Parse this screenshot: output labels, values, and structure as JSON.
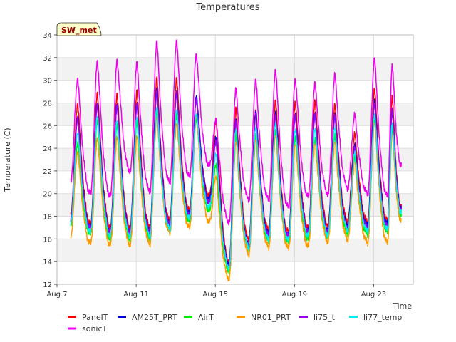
{
  "chart_data": {
    "type": "line",
    "title": "Temperatures",
    "xlabel": "Time",
    "ylabel": "Temperature (C)",
    "badge": "SW_met",
    "ylim": [
      12,
      34
    ],
    "yticks": [
      12,
      14,
      16,
      18,
      20,
      22,
      24,
      26,
      28,
      30,
      32,
      34
    ],
    "xlim": [
      7,
      25
    ],
    "xticks": [
      {
        "value": 7,
        "label": "Aug 7"
      },
      {
        "value": 11,
        "label": "Aug 11"
      },
      {
        "value": 15,
        "label": "Aug 15"
      },
      {
        "value": 19,
        "label": "Aug 19"
      },
      {
        "value": 23,
        "label": "Aug 23"
      }
    ],
    "grid": true,
    "legend_position": "bottom",
    "days": [
      7.7,
      8.7,
      9.7,
      10.7,
      11.7,
      12.7,
      13.7,
      14.7,
      15.7,
      16.7,
      17.7,
      18.7,
      19.7,
      20.7,
      21.7,
      22.7,
      23.7,
      24.4
    ],
    "series": [
      {
        "name": "PanelT",
        "color": "#ff0000",
        "peaks": [
          28.0,
          29.0,
          28.8,
          29.0,
          30.2,
          30.3,
          28.5,
          26.5,
          27.5,
          27.3,
          28.3,
          28.2,
          28.2,
          27.8,
          25.3,
          29.3,
          28.7
        ],
        "troughs": [
          18.2,
          17.3,
          17.0,
          17.0,
          17.0,
          17.6,
          18.5,
          19.8,
          14.0,
          16.0,
          16.8,
          16.6,
          17.0,
          17.2,
          17.6,
          17.5,
          17.6,
          18.8
        ]
      },
      {
        "name": "AM25T_PRT",
        "color": "#0000dd",
        "peaks": [
          27.0,
          28.2,
          28.0,
          28.0,
          29.3,
          29.2,
          28.8,
          25.0,
          26.5,
          27.2,
          27.3,
          27.2,
          27.2,
          27.0,
          24.3,
          28.3,
          27.6
        ],
        "troughs": [
          17.8,
          17.0,
          16.7,
          16.7,
          16.7,
          17.3,
          18.2,
          19.5,
          13.8,
          15.5,
          16.5,
          16.3,
          16.7,
          16.8,
          17.2,
          17.2,
          17.3,
          18.6
        ]
      },
      {
        "name": "AirT",
        "color": "#00ee00",
        "peaks": [
          24.5,
          26.5,
          26.0,
          26.2,
          27.3,
          27.0,
          26.7,
          22.5,
          25.0,
          25.0,
          25.5,
          25.0,
          24.8,
          25.0,
          23.2,
          26.6,
          25.8
        ],
        "troughs": [
          17.2,
          16.4,
          16.0,
          16.0,
          16.0,
          16.6,
          17.5,
          18.5,
          13.2,
          15.2,
          15.8,
          15.7,
          16.0,
          16.2,
          16.5,
          16.4,
          16.6,
          18.1
        ]
      },
      {
        "name": "NR01_PRT",
        "color": "#ff9900",
        "peaks": [
          23.8,
          25.0,
          25.0,
          25.0,
          26.8,
          26.3,
          27.0,
          21.5,
          24.5,
          24.8,
          25.3,
          24.5,
          24.5,
          24.5,
          22.8,
          26.4,
          25.5
        ],
        "troughs": [
          16.3,
          15.6,
          15.5,
          15.5,
          15.6,
          16.6,
          17.0,
          17.5,
          12.5,
          14.7,
          15.3,
          15.2,
          15.4,
          15.8,
          16.0,
          15.7,
          15.7,
          17.6
        ]
      },
      {
        "name": "li75_t",
        "color": "#9900ee",
        "peaks": [
          26.8,
          28.0,
          27.8,
          27.8,
          29.0,
          29.0,
          28.5,
          24.6,
          26.3,
          27.0,
          27.0,
          27.0,
          27.0,
          26.8,
          24.0,
          28.0,
          27.5
        ],
        "troughs": [
          17.7,
          16.9,
          16.6,
          16.6,
          16.6,
          17.2,
          18.0,
          19.2,
          13.6,
          15.4,
          16.3,
          16.2,
          16.6,
          16.7,
          17.0,
          17.0,
          17.1,
          18.5
        ]
      },
      {
        "name": "li77_temp",
        "color": "#00eeee",
        "peaks": [
          25.5,
          27.0,
          26.5,
          26.7,
          27.6,
          27.5,
          27.2,
          23.5,
          25.6,
          25.8,
          26.3,
          25.8,
          25.8,
          25.8,
          23.6,
          27.0,
          26.3
        ],
        "troughs": [
          17.5,
          16.6,
          16.3,
          16.3,
          16.3,
          16.9,
          17.8,
          18.8,
          13.5,
          15.3,
          16.0,
          15.9,
          16.3,
          16.4,
          16.8,
          16.7,
          16.8,
          18.3
        ]
      },
      {
        "name": "sonicT",
        "color": "#ee00ee",
        "peaks": [
          30.2,
          31.8,
          31.8,
          31.5,
          33.4,
          33.6,
          32.4,
          26.5,
          29.2,
          30.0,
          31.0,
          30.2,
          29.8,
          30.5,
          27.0,
          32.0,
          31.5
        ],
        "troughs": [
          21.2,
          20.0,
          19.8,
          22.0,
          20.2,
          21.0,
          21.5,
          22.5,
          17.5,
          19.5,
          19.5,
          18.8,
          19.8,
          20.0,
          20.5,
          20.0,
          19.8,
          22.5
        ]
      }
    ]
  }
}
